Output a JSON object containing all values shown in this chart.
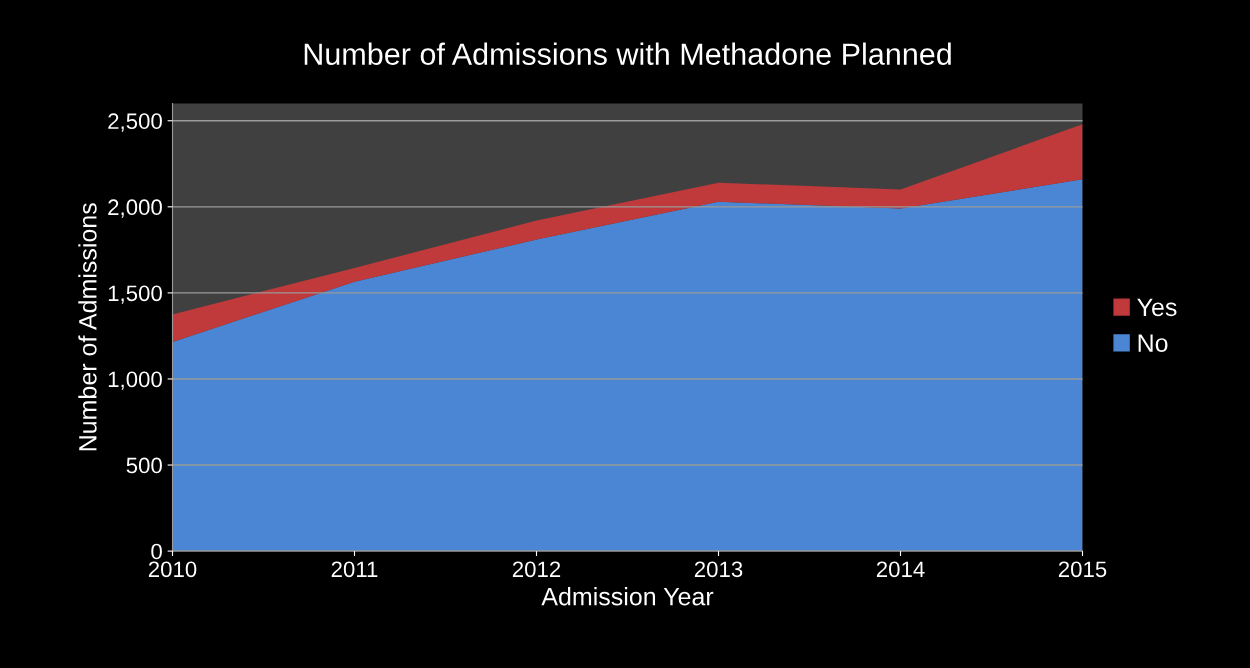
{
  "chart_data": {
    "type": "area",
    "stacked": true,
    "title": "Number of Admissions with Methadone Planned",
    "xlabel": "Admission Year",
    "ylabel": "Number of Admissions",
    "x": [
      2010,
      2011,
      2012,
      2013,
      2014,
      2015
    ],
    "series": [
      {
        "name": "No",
        "color": "#4a86d4",
        "values": [
          1215,
          1565,
          1810,
          2030,
          1990,
          2160
        ]
      },
      {
        "name": "Yes",
        "color": "#c0393b",
        "values": [
          160,
          80,
          110,
          110,
          110,
          320
        ]
      }
    ],
    "xlim": [
      2010,
      2015
    ],
    "xticks": [
      2010,
      2011,
      2012,
      2013,
      2014,
      2015
    ],
    "ylim": [
      0,
      2600
    ],
    "yticks": [
      {
        "value": 0,
        "label": "0"
      },
      {
        "value": 500,
        "label": "500"
      },
      {
        "value": 1000,
        "label": "1,000"
      },
      {
        "value": 1500,
        "label": "1,500"
      },
      {
        "value": 2000,
        "label": "2,000"
      },
      {
        "value": 2500,
        "label": "2,500"
      }
    ],
    "grid": "y",
    "legend": "right"
  }
}
